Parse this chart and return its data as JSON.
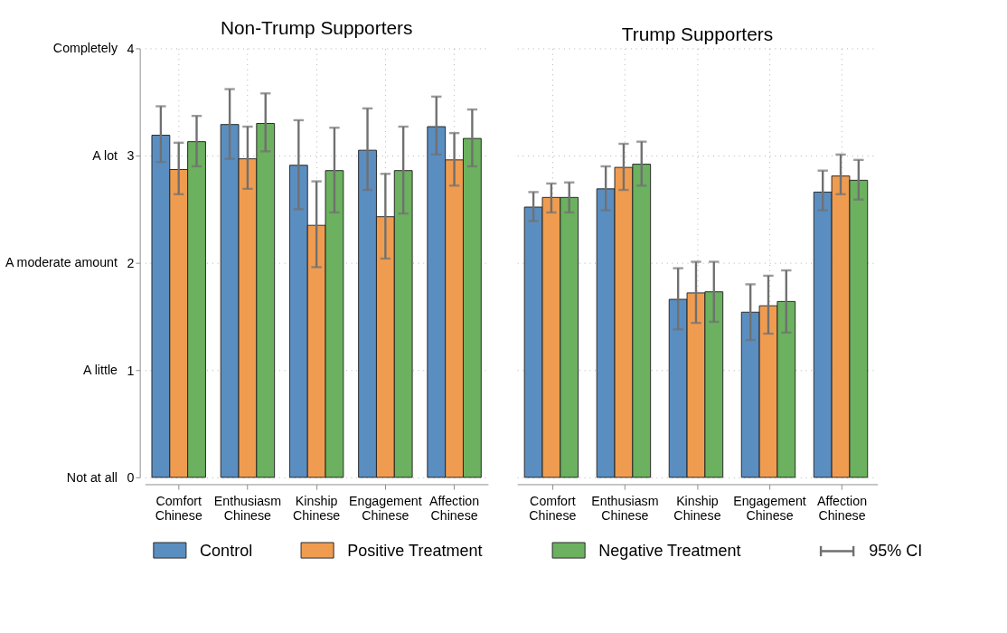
{
  "chart_data": [
    {
      "type": "bar",
      "title": "Non-Trump Supporters",
      "categories": [
        "Comfort Chinese",
        "Enthusiasm Chinese",
        "Kinship Chinese",
        "Engagement Chinese",
        "Affection Chinese"
      ],
      "ylim": [
        0,
        4
      ],
      "yticks": [
        0,
        1,
        2,
        3,
        4
      ],
      "grid": true,
      "legend": "bottom",
      "annotations": [
        "95% CI",
        "Not at all",
        "A little",
        "A moderate amount",
        "A lot",
        "Completely"
      ],
      "series": [
        {
          "name": "Control",
          "color": "#5b8ec0",
          "values": [
            3.19,
            3.29,
            2.91,
            3.05,
            3.27
          ],
          "errors": [
            [
              2.94,
              3.46
            ],
            [
              2.97,
              3.62
            ],
            [
              2.5,
              3.33
            ],
            [
              2.68,
              3.44
            ],
            [
              3.01,
              3.55
            ]
          ]
        },
        {
          "name": "Positive Treatment",
          "color": "#f09c50",
          "values": [
            2.87,
            2.97,
            2.35,
            2.43,
            2.96
          ],
          "errors": [
            [
              2.64,
              3.12
            ],
            [
              2.69,
              3.27
            ],
            [
              1.96,
              2.76
            ],
            [
              2.04,
              2.83
            ],
            [
              2.72,
              3.21
            ]
          ]
        },
        {
          "name": "Negative Treatment",
          "color": "#6bb15f",
          "values": [
            3.13,
            3.3,
            2.86,
            2.86,
            3.16
          ],
          "errors": [
            [
              2.9,
              3.37
            ],
            [
              3.04,
              3.58
            ],
            [
              2.47,
              3.26
            ],
            [
              2.46,
              3.27
            ],
            [
              2.9,
              3.43
            ]
          ]
        }
      ]
    },
    {
      "type": "bar",
      "title": "Trump Supporters",
      "categories": [
        "Comfort Chinese",
        "Enthusiasm Chinese",
        "Kinship Chinese",
        "Engagement Chinese",
        "Affection Chinese"
      ],
      "ylim": [
        0,
        4
      ],
      "yticks": [
        0,
        1,
        2,
        3,
        4
      ],
      "tick_labels": "x",
      "grid": true,
      "series": [
        {
          "name": "Control",
          "color": "#5b8ec0",
          "values": [
            2.52,
            2.69,
            1.66,
            1.54,
            2.66
          ],
          "errors": [
            [
              2.39,
              2.66
            ],
            [
              2.49,
              2.9
            ],
            [
              1.38,
              1.95
            ],
            [
              1.28,
              1.8
            ],
            [
              2.49,
              2.86
            ]
          ]
        },
        {
          "name": "Positive Treatment",
          "color": "#f09c50",
          "values": [
            2.61,
            2.89,
            1.72,
            1.6,
            2.81
          ],
          "errors": [
            [
              2.47,
              2.74
            ],
            [
              2.68,
              3.11
            ],
            [
              1.44,
              2.01
            ],
            [
              1.34,
              1.88
            ],
            [
              2.64,
              3.01
            ]
          ]
        },
        {
          "name": "Negative Treatment",
          "color": "#6bb15f",
          "values": [
            2.61,
            2.92,
            1.73,
            1.64,
            2.77
          ],
          "errors": [
            [
              2.47,
              2.75
            ],
            [
              2.72,
              3.13
            ],
            [
              1.45,
              2.01
            ],
            [
              1.35,
              1.93
            ],
            [
              2.59,
              2.96
            ]
          ]
        }
      ]
    }
  ]
}
